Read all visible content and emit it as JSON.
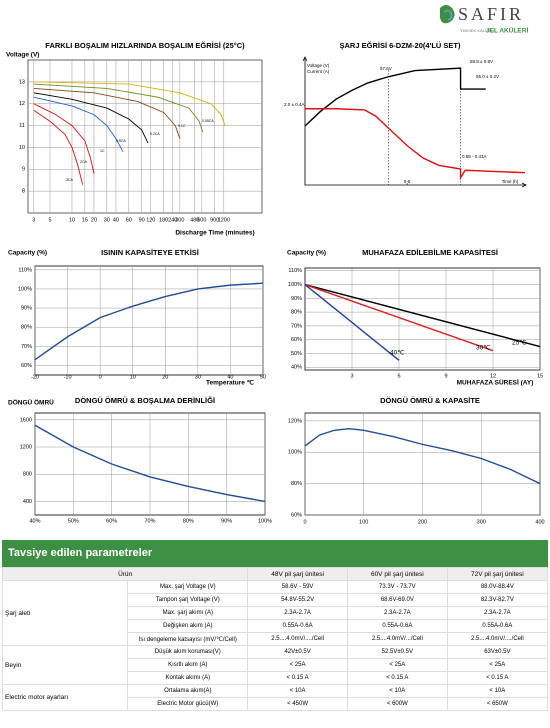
{
  "header": {
    "logo": "SAFIR",
    "tagline": "YÜKSEK KALİTELİ",
    "product": "JEL AKÜLERİ"
  },
  "chart_data": [
    {
      "type": "line",
      "title": "FARKLI BOŞALIM HIZLARINDA BOŞALIM EĞRİSİ (25°C)",
      "ylabel": "Voltage (V)",
      "xlabel": "Discharge Time (minutes)",
      "xlog": true,
      "grid": true,
      "xlim": [
        2.5,
        4000
      ],
      "xticks": [
        3,
        5,
        10,
        15,
        20,
        30,
        40,
        60,
        90,
        120,
        180,
        240,
        300,
        480,
        600,
        900,
        1200
      ],
      "ylim": [
        7,
        14
      ],
      "yticks": [
        8,
        9,
        10,
        11,
        12,
        13
      ],
      "series": [
        {
          "name": "3CA",
          "color": "#e01010",
          "x": [
            3,
            5,
            8,
            10,
            12,
            14
          ],
          "values": [
            11.7,
            11.2,
            10.6,
            10.0,
            9.2,
            8.3
          ]
        },
        {
          "name": "2CA",
          "color": "#e01010",
          "x": [
            3,
            6,
            10,
            15,
            18,
            20
          ],
          "values": [
            12.0,
            11.5,
            11.0,
            10.3,
            9.5,
            8.8
          ]
        },
        {
          "name": "1C",
          "color": "#2060d0",
          "x": [
            3,
            10,
            20,
            30,
            40,
            50
          ],
          "values": [
            12.3,
            11.9,
            11.5,
            11.0,
            10.4,
            9.8
          ]
        },
        {
          "name": "0.5CA",
          "color": "#000000",
          "x": [
            3,
            10,
            30,
            60,
            90,
            110
          ],
          "values": [
            12.5,
            12.2,
            11.8,
            11.3,
            10.8,
            10.2
          ]
        },
        {
          "name": "0.2CA",
          "color": "#8b4513",
          "x": [
            3,
            20,
            80,
            180,
            260,
            300
          ],
          "values": [
            12.7,
            12.5,
            12.1,
            11.6,
            11.0,
            10.4
          ]
        },
        {
          "name": "0.1C",
          "color": "#6b8e23",
          "x": [
            3,
            30,
            150,
            400,
            550,
            620
          ],
          "values": [
            12.9,
            12.7,
            12.3,
            11.8,
            11.2,
            10.7
          ]
        },
        {
          "name": "0.05CA",
          "color": "#e0b000",
          "x": [
            3,
            60,
            300,
            800,
            1100,
            1250
          ],
          "values": [
            13.0,
            12.9,
            12.5,
            12.0,
            11.5,
            11.0
          ]
        }
      ]
    },
    {
      "type": "line",
      "title": "ŞARJ EĞRİSİ 6-DZM-20(4'LÜ SET)",
      "ylabel": "Voltage (V)",
      "y2label": "Current (A)",
      "xlabel": "Time (h)",
      "xlim": [
        0,
        14
      ],
      "xticks": [
        {
          "value": 6.5,
          "label": "5-8"
        }
      ],
      "ylim": [
        0,
        1
      ],
      "annotations": [
        "57.6V",
        "58.8 ± 0.8V",
        "55.0 ± 0.2V",
        "2.0 ± 0.4A",
        "0.58 - 0.43A"
      ],
      "series": [
        {
          "color": "#000000",
          "x": [
            0,
            1,
            2,
            3,
            4,
            5.3,
            7,
            9.9,
            9.9,
            11.5
          ],
          "values": [
            0.48,
            0.6,
            0.7,
            0.77,
            0.83,
            0.88,
            0.93,
            0.95,
            0.78,
            0.78
          ]
        },
        {
          "color": "#e01010",
          "x": [
            0,
            2,
            3.8,
            4.5,
            5.5,
            6.5,
            7.5,
            8.5,
            9.9,
            9.9,
            10.2,
            14
          ],
          "values": [
            0.62,
            0.62,
            0.61,
            0.56,
            0.44,
            0.32,
            0.22,
            0.16,
            0.13,
            0.06,
            0.12,
            0.1
          ]
        }
      ]
    },
    {
      "type": "line",
      "title": "ISININ KAPASİTEYE ETKİSİ",
      "ylabel": "Capacity (%)",
      "xlabel": "Temperature ℃",
      "grid": true,
      "frame": true,
      "color": "#1f4e9a",
      "xlim": [
        -20,
        50
      ],
      "xticks": [
        -20,
        -10,
        0,
        10,
        20,
        30,
        40,
        50
      ],
      "ylim": [
        55,
        112
      ],
      "yticks": [
        {
          "value": 60,
          "label": "60%"
        },
        {
          "value": 70,
          "label": "70%"
        },
        {
          "value": 80,
          "label": "80%"
        },
        {
          "value": 90,
          "label": "90%"
        },
        {
          "value": 100,
          "label": "100%"
        },
        {
          "value": 110,
          "label": "110%"
        }
      ],
      "x": [
        -20,
        -10,
        0,
        10,
        20,
        30,
        40,
        50
      ],
      "values": [
        63,
        75,
        85,
        91,
        96,
        100,
        102,
        103
      ]
    },
    {
      "type": "line",
      "title": "MUHAFAZA EDİLEBİLME KAPASİTESİ",
      "ylabel": "Capacity (%)",
      "xlabel": "MUHAFAZA SÜRESİ (AY)",
      "grid": true,
      "frame": true,
      "xlim": [
        0,
        15
      ],
      "xticks": [
        3,
        6,
        9,
        12,
        15
      ],
      "ylim": [
        38,
        112
      ],
      "yticks": [
        {
          "value": 40,
          "label": "40%"
        },
        {
          "value": 50,
          "label": "50%"
        },
        {
          "value": 60,
          "label": "60%"
        },
        {
          "value": 70,
          "label": "70%"
        },
        {
          "value": 80,
          "label": "80%"
        },
        {
          "value": 90,
          "label": "90%"
        },
        {
          "value": 100,
          "label": "100%"
        },
        {
          "value": 110,
          "label": "110%"
        }
      ],
      "series": [
        {
          "name": "25℃",
          "color": "#000000",
          "x": [
            0,
            15
          ],
          "values": [
            100,
            55
          ]
        },
        {
          "name": "30℃",
          "color": "#e02020",
          "x": [
            0,
            12
          ],
          "values": [
            100,
            52
          ]
        },
        {
          "name": "40℃",
          "color": "#1f3fa0",
          "x": [
            0,
            6
          ],
          "values": [
            100,
            45
          ]
        }
      ]
    },
    {
      "type": "line",
      "title": "DÖNGÜ ÖMRÜ & BOŞALMA DERİNLİĞİ",
      "ylabel": "DÖNGÜ ÖMRÜ",
      "grid": true,
      "frame": true,
      "color": "#1f4e9a",
      "xlim": [
        40,
        100
      ],
      "xticks": [
        {
          "value": 40,
          "label": "40%"
        },
        {
          "value": 50,
          "label": "50%"
        },
        {
          "value": 60,
          "label": "60%"
        },
        {
          "value": 70,
          "label": "70%"
        },
        {
          "value": 80,
          "label": "80%"
        },
        {
          "value": 90,
          "label": "90%"
        },
        {
          "value": 100,
          "label": "100%"
        }
      ],
      "ylim": [
        200,
        1700
      ],
      "yticks": [
        400,
        800,
        1200,
        1600
      ],
      "x": [
        40,
        50,
        60,
        70,
        80,
        90,
        100
      ],
      "values": [
        1520,
        1200,
        950,
        760,
        620,
        500,
        400
      ]
    },
    {
      "type": "line",
      "title": "DÖNGÜ ÖMRÜ & KAPASİTE",
      "grid": true,
      "frame": true,
      "color": "#1f4e9a",
      "xlim": [
        0,
        400
      ],
      "xticks": [
        0,
        100,
        200,
        300,
        400
      ],
      "ylim": [
        60,
        125
      ],
      "yticks": [
        {
          "value": 60,
          "label": "60%"
        },
        {
          "value": 80,
          "label": "80%"
        },
        {
          "value": 100,
          "label": "100%"
        },
        {
          "value": 120,
          "label": "120%"
        }
      ],
      "x": [
        0,
        25,
        50,
        75,
        100,
        150,
        200,
        250,
        300,
        350,
        400
      ],
      "values": [
        104,
        111,
        114,
        115,
        114,
        110,
        105,
        101,
        96,
        89,
        80
      ]
    }
  ],
  "table": {
    "title": "Tavsiye edilen parametreler",
    "header": [
      "Ürün",
      "48V pil şarj ünitesi",
      "60V pil şarj ünitesi",
      "72V pil şarj ünitesi"
    ],
    "groups": [
      {
        "label": "Şarj aleti",
        "rows": [
          [
            "Max. şarj Voltage (V)",
            "58.6V - 59V",
            "73.3V - 73.7V",
            "88.0V-88.4V"
          ],
          [
            "Tampon şarj Voltage (V)",
            "54.8V-55.2V",
            "68.6V-69.0V",
            "82.3V-82.7V"
          ],
          [
            "Max. şarj akımı (A)",
            "2.3A-2.7A",
            "2.3A-2.7A",
            "2.3A-2.7A"
          ],
          [
            "Değişken akım (A)",
            "0.55A-0.6A",
            "0.55A-0.6A",
            "0.55A-0.6A"
          ],
          [
            "Isı dengeleme katsayısı (mV/℃/Cell)",
            "2.5....4.0mV/..../Cell",
            "2.5....4.0mV/.../Cell",
            "2.5....4.0mV/..../Cell"
          ]
        ]
      },
      {
        "label": "Beyin",
        "rows": [
          [
            "Düşük akım koruması(V)",
            "42V±0.5V",
            "52.5V±0.5V",
            "63V±0.5V"
          ],
          [
            "Kısıtlı akım (A)",
            "< 25A",
            "< 25A",
            "< 25A"
          ],
          [
            "Kontak akımı (A)",
            "< 0.15 A",
            "< 0.15 A",
            "< 0.15 A"
          ]
        ]
      },
      {
        "label": "Electric motor ayarları",
        "rows": [
          [
            "Ortalama akım(A)",
            "< 10A",
            "< 10A",
            "< 10A"
          ],
          [
            "Electric Motor gücü(W)",
            "< 450W",
            "< 600W",
            "< 650W"
          ]
        ]
      }
    ]
  }
}
